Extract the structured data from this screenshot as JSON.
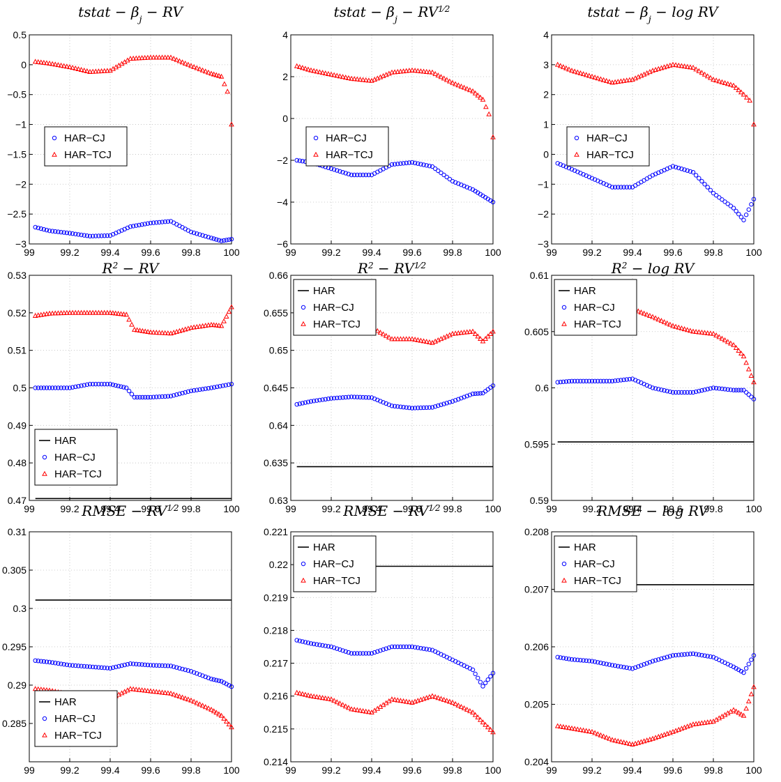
{
  "figure": {
    "legend_labels": {
      "HAR": "HAR",
      "HAR-CJ": "HAR−CJ",
      "HAR-TCJ": "HAR−TCJ"
    },
    "colors": {
      "HAR": "#000000",
      "HAR-CJ": "#0000ff",
      "HAR-TCJ": "#ff0000"
    }
  },
  "chart_data": [
    {
      "type": "scatter",
      "title": "tstat − β_j − RV",
      "xlim": [
        99,
        100
      ],
      "ylim": [
        -3,
        0.5
      ],
      "xticks": [
        99,
        99.2,
        99.4,
        99.6,
        99.8,
        100
      ],
      "xtick_labels": [
        "99",
        "99.2",
        "99.4",
        "99.6",
        "99.8",
        "100"
      ],
      "yticks": [
        -3,
        -2.5,
        -2,
        -1.5,
        -1,
        -0.5,
        0,
        0.5
      ],
      "ytick_labels": [
        "−3",
        "−2.5",
        "−2",
        "−1.5",
        "−1",
        "−0.5",
        "0",
        "0.5"
      ],
      "grid": true,
      "legend": "center-left",
      "series": [
        {
          "name": "HAR-CJ",
          "marker": "circle",
          "x": [
            99.03,
            99.1,
            99.2,
            99.3,
            99.4,
            99.5,
            99.6,
            99.7,
            99.8,
            99.9,
            99.95,
            100
          ],
          "y": [
            -2.72,
            -2.78,
            -2.82,
            -2.87,
            -2.86,
            -2.71,
            -2.65,
            -2.62,
            -2.8,
            -2.9,
            -2.95,
            -2.92
          ]
        },
        {
          "name": "HAR-TCJ",
          "marker": "triangle",
          "x": [
            99.03,
            99.1,
            99.2,
            99.3,
            99.4,
            99.5,
            99.6,
            99.7,
            99.8,
            99.9,
            99.95,
            99.98,
            100
          ],
          "y": [
            0.05,
            0.02,
            -0.04,
            -0.12,
            -0.1,
            0.1,
            0.12,
            0.12,
            -0.02,
            -0.15,
            -0.2,
            -0.45,
            -1.0
          ]
        }
      ]
    },
    {
      "type": "scatter",
      "title": "tstat − β_j − RV^(1/2)",
      "xlim": [
        99,
        100
      ],
      "ylim": [
        -6,
        4
      ],
      "xticks": [
        99,
        99.2,
        99.4,
        99.6,
        99.8,
        100
      ],
      "xtick_labels": [
        "99",
        "99.2",
        "99.4",
        "99.6",
        "99.8",
        "100"
      ],
      "yticks": [
        -6,
        -4,
        -2,
        0,
        2,
        4
      ],
      "ytick_labels": [
        "−6",
        "−4",
        "−2",
        "0",
        "2",
        "4"
      ],
      "grid": true,
      "legend": "center-left",
      "series": [
        {
          "name": "HAR-CJ",
          "marker": "circle",
          "x": [
            99.03,
            99.1,
            99.2,
            99.3,
            99.4,
            99.5,
            99.6,
            99.7,
            99.8,
            99.9,
            99.95,
            100
          ],
          "y": [
            -2.0,
            -2.1,
            -2.4,
            -2.7,
            -2.7,
            -2.2,
            -2.1,
            -2.3,
            -3.0,
            -3.4,
            -3.7,
            -4.0
          ]
        },
        {
          "name": "HAR-TCJ",
          "marker": "triangle",
          "x": [
            99.03,
            99.1,
            99.2,
            99.3,
            99.4,
            99.5,
            99.6,
            99.7,
            99.8,
            99.9,
            99.95,
            99.98,
            100
          ],
          "y": [
            2.5,
            2.3,
            2.1,
            1.9,
            1.8,
            2.2,
            2.3,
            2.2,
            1.7,
            1.3,
            0.9,
            0.2,
            -0.9
          ]
        }
      ]
    },
    {
      "type": "scatter",
      "title": "tstat − β_j − log RV",
      "xlim": [
        99,
        100
      ],
      "ylim": [
        -3,
        4
      ],
      "xticks": [
        99,
        99.2,
        99.4,
        99.6,
        99.8,
        100
      ],
      "xtick_labels": [
        "99",
        "99.2",
        "99.4",
        "99.6",
        "99.8",
        "100"
      ],
      "yticks": [
        -3,
        -2,
        -1,
        0,
        1,
        2,
        3,
        4
      ],
      "ytick_labels": [
        "−3",
        "−2",
        "−1",
        "0",
        "1",
        "2",
        "3",
        "4"
      ],
      "grid": true,
      "legend": "center-left",
      "series": [
        {
          "name": "HAR-CJ",
          "marker": "circle",
          "x": [
            99.03,
            99.1,
            99.2,
            99.3,
            99.4,
            99.5,
            99.6,
            99.7,
            99.8,
            99.9,
            99.95,
            100
          ],
          "y": [
            -0.3,
            -0.5,
            -0.8,
            -1.1,
            -1.1,
            -0.7,
            -0.4,
            -0.6,
            -1.3,
            -1.8,
            -2.2,
            -1.5
          ]
        },
        {
          "name": "HAR-TCJ",
          "marker": "triangle",
          "x": [
            99.03,
            99.1,
            99.2,
            99.3,
            99.4,
            99.5,
            99.6,
            99.7,
            99.8,
            99.9,
            99.95,
            99.98,
            100
          ],
          "y": [
            3.0,
            2.8,
            2.6,
            2.4,
            2.5,
            2.8,
            3.0,
            2.9,
            2.5,
            2.3,
            2.0,
            1.8,
            1.0
          ]
        }
      ]
    },
    {
      "type": "scatter",
      "title": "R^2 − RV",
      "xlim": [
        99,
        100
      ],
      "ylim": [
        0.47,
        0.53
      ],
      "xticks": [
        99,
        99.2,
        99.4,
        99.6,
        99.8,
        100
      ],
      "xtick_labels": [
        "99",
        "99.2",
        "99.4",
        "99.6",
        "99.8",
        "100"
      ],
      "yticks": [
        0.47,
        0.48,
        0.49,
        0.5,
        0.51,
        0.52,
        0.53
      ],
      "ytick_labels": [
        "0.47",
        "0.48",
        "0.49",
        "0.5",
        "0.51",
        "0.52",
        "0.53"
      ],
      "grid": true,
      "legend": "bottom-left",
      "series": [
        {
          "name": "HAR",
          "marker": "line",
          "x": [
            99.03,
            100
          ],
          "y": [
            0.4705,
            0.4705
          ]
        },
        {
          "name": "HAR-CJ",
          "marker": "circle",
          "x": [
            99.03,
            99.1,
            99.2,
            99.3,
            99.4,
            99.48,
            99.52,
            99.6,
            99.7,
            99.8,
            99.9,
            100
          ],
          "y": [
            0.5,
            0.5,
            0.5,
            0.501,
            0.501,
            0.5,
            0.4975,
            0.4975,
            0.4978,
            0.4992,
            0.5,
            0.501
          ]
        },
        {
          "name": "HAR-TCJ",
          "marker": "triangle",
          "x": [
            99.03,
            99.1,
            99.2,
            99.3,
            99.4,
            99.48,
            99.52,
            99.6,
            99.7,
            99.8,
            99.9,
            99.95,
            100
          ],
          "y": [
            0.5192,
            0.5198,
            0.52,
            0.52,
            0.52,
            0.5195,
            0.5155,
            0.5148,
            0.5145,
            0.516,
            0.5168,
            0.5165,
            0.5215
          ]
        }
      ]
    },
    {
      "type": "scatter",
      "title": "R^2 − RV^(1/2)",
      "xlim": [
        99,
        100
      ],
      "ylim": [
        0.63,
        0.66
      ],
      "xticks": [
        99,
        99.2,
        99.4,
        99.6,
        99.8,
        100
      ],
      "xtick_labels": [
        "99",
        "99.2",
        "99.4",
        "99.6",
        "99.8",
        "100"
      ],
      "yticks": [
        0.63,
        0.635,
        0.64,
        0.645,
        0.65,
        0.655,
        0.66
      ],
      "ytick_labels": [
        "0.63",
        "0.635",
        "0.64",
        "0.645",
        "0.65",
        "0.655",
        "0.66"
      ],
      "grid": true,
      "legend": "top-left",
      "series": [
        {
          "name": "HAR",
          "marker": "line",
          "x": [
            99.03,
            100
          ],
          "y": [
            0.6345,
            0.6345
          ]
        },
        {
          "name": "HAR-CJ",
          "marker": "circle",
          "x": [
            99.03,
            99.1,
            99.2,
            99.3,
            99.4,
            99.5,
            99.6,
            99.7,
            99.8,
            99.9,
            99.95,
            100
          ],
          "y": [
            0.6428,
            0.6432,
            0.6436,
            0.6438,
            0.6437,
            0.6426,
            0.6423,
            0.6424,
            0.6432,
            0.6442,
            0.6443,
            0.6453
          ]
        },
        {
          "name": "HAR-TCJ",
          "marker": "triangle",
          "x": [
            99.03,
            99.1,
            99.2,
            99.3,
            99.4,
            99.5,
            99.6,
            99.7,
            99.8,
            99.9,
            99.95,
            100
          ],
          "y": [
            0.6525,
            0.6528,
            0.6532,
            0.6532,
            0.653,
            0.6515,
            0.6515,
            0.651,
            0.6522,
            0.6525,
            0.6512,
            0.6525
          ]
        }
      ]
    },
    {
      "type": "scatter",
      "title": "R^2 − log RV",
      "xlim": [
        99,
        100
      ],
      "ylim": [
        0.59,
        0.61
      ],
      "xticks": [
        99,
        99.2,
        99.4,
        99.6,
        99.8,
        100
      ],
      "xtick_labels": [
        "99",
        "99.2",
        "99.4",
        "99.6",
        "99.8",
        "100"
      ],
      "yticks": [
        0.59,
        0.595,
        0.6,
        0.605,
        0.61
      ],
      "ytick_labels": [
        "0.59",
        "0.595",
        "0.6",
        "0.605",
        "0.61"
      ],
      "grid": true,
      "legend": "top-left",
      "series": [
        {
          "name": "HAR",
          "marker": "line",
          "x": [
            99.03,
            100
          ],
          "y": [
            0.5952,
            0.5952
          ]
        },
        {
          "name": "HAR-CJ",
          "marker": "circle",
          "x": [
            99.03,
            99.1,
            99.2,
            99.3,
            99.4,
            99.5,
            99.6,
            99.7,
            99.8,
            99.9,
            99.95,
            100
          ],
          "y": [
            0.6005,
            0.6006,
            0.6006,
            0.6006,
            0.6008,
            0.6,
            0.5996,
            0.5996,
            0.6,
            0.5998,
            0.5998,
            0.599
          ]
        },
        {
          "name": "HAR-TCJ",
          "marker": "triangle",
          "x": [
            99.03,
            99.1,
            99.2,
            99.3,
            99.4,
            99.5,
            99.6,
            99.7,
            99.8,
            99.9,
            99.95,
            100
          ],
          "y": [
            0.607,
            0.607,
            0.6072,
            0.6072,
            0.607,
            0.6063,
            0.6055,
            0.605,
            0.6048,
            0.6038,
            0.6028,
            0.6005
          ]
        }
      ]
    },
    {
      "type": "scatter",
      "title": "RMSE − RV^(1/2)",
      "xlim": [
        99,
        100
      ],
      "ylim": [
        0.28,
        0.31
      ],
      "xticks": [
        99,
        99.2,
        99.4,
        99.6,
        99.8,
        100
      ],
      "xtick_labels": [
        "99",
        "99.2",
        "99.4",
        "99.6",
        "99.8",
        "100"
      ],
      "yticks": [
        0.285,
        0.29,
        0.295,
        0.3,
        0.305,
        0.31
      ],
      "ytick_labels": [
        "0.285",
        "0.29",
        "0.295",
        "0.3",
        "0.305",
        "0.31"
      ],
      "grid": true,
      "legend": "bottom-left",
      "series": [
        {
          "name": "HAR",
          "marker": "line",
          "x": [
            99.03,
            100
          ],
          "y": [
            0.3011,
            0.3011
          ]
        },
        {
          "name": "HAR-CJ",
          "marker": "circle",
          "x": [
            99.03,
            99.1,
            99.2,
            99.3,
            99.4,
            99.5,
            99.6,
            99.7,
            99.8,
            99.9,
            99.95,
            100
          ],
          "y": [
            0.2932,
            0.293,
            0.2926,
            0.2924,
            0.2922,
            0.2928,
            0.2926,
            0.2925,
            0.2918,
            0.2908,
            0.2905,
            0.2898
          ]
        },
        {
          "name": "HAR-TCJ",
          "marker": "triangle",
          "x": [
            99.03,
            99.1,
            99.2,
            99.3,
            99.4,
            99.5,
            99.6,
            99.7,
            99.8,
            99.9,
            99.95,
            100
          ],
          "y": [
            0.2895,
            0.2893,
            0.2888,
            0.2884,
            0.2882,
            0.2895,
            0.2892,
            0.2889,
            0.288,
            0.2868,
            0.286,
            0.2845
          ]
        }
      ]
    },
    {
      "type": "scatter",
      "title": "RMSE − RV^(1/2)",
      "xlim": [
        99,
        100
      ],
      "ylim": [
        0.214,
        0.221
      ],
      "xticks": [
        99,
        99.2,
        99.4,
        99.6,
        99.8,
        100
      ],
      "xtick_labels": [
        "99",
        "99.2",
        "99.4",
        "99.6",
        "99.8",
        "100"
      ],
      "yticks": [
        0.214,
        0.215,
        0.216,
        0.217,
        0.218,
        0.219,
        0.22,
        0.221
      ],
      "ytick_labels": [
        "0.214",
        "0.215",
        "0.216",
        "0.217",
        "0.218",
        "0.219",
        "0.22",
        "0.221"
      ],
      "grid": true,
      "legend": "top-left",
      "series": [
        {
          "name": "HAR",
          "marker": "line",
          "x": [
            99.03,
            100
          ],
          "y": [
            0.21995,
            0.21995
          ]
        },
        {
          "name": "HAR-CJ",
          "marker": "circle",
          "x": [
            99.03,
            99.1,
            99.2,
            99.3,
            99.4,
            99.5,
            99.6,
            99.7,
            99.8,
            99.9,
            99.95,
            100
          ],
          "y": [
            0.2177,
            0.2176,
            0.2175,
            0.2173,
            0.2173,
            0.2175,
            0.2175,
            0.2174,
            0.2171,
            0.2168,
            0.2163,
            0.2167
          ]
        },
        {
          "name": "HAR-TCJ",
          "marker": "triangle",
          "x": [
            99.03,
            99.1,
            99.2,
            99.3,
            99.4,
            99.5,
            99.6,
            99.7,
            99.8,
            99.9,
            99.95,
            100
          ],
          "y": [
            0.2161,
            0.216,
            0.2159,
            0.2156,
            0.2155,
            0.2159,
            0.2158,
            0.216,
            0.2158,
            0.2155,
            0.2152,
            0.2149
          ]
        }
      ]
    },
    {
      "type": "scatter",
      "title": "RMSE − log RV",
      "xlim": [
        99,
        100
      ],
      "ylim": [
        0.204,
        0.208
      ],
      "xticks": [
        99,
        99.2,
        99.4,
        99.6,
        99.8,
        100
      ],
      "xtick_labels": [
        "99",
        "99.2",
        "99.4",
        "99.6",
        "99.8",
        "100"
      ],
      "yticks": [
        0.204,
        0.205,
        0.206,
        0.207,
        0.208
      ],
      "ytick_labels": [
        "0.204",
        "0.205",
        "0.206",
        "0.207",
        "0.208"
      ],
      "grid": true,
      "legend": "top-left",
      "series": [
        {
          "name": "HAR",
          "marker": "line",
          "x": [
            99.03,
            100
          ],
          "y": [
            0.20708,
            0.20708
          ]
        },
        {
          "name": "HAR-CJ",
          "marker": "circle",
          "x": [
            99.03,
            99.1,
            99.2,
            99.3,
            99.4,
            99.5,
            99.6,
            99.7,
            99.8,
            99.9,
            99.95,
            100
          ],
          "y": [
            0.20582,
            0.20578,
            0.20575,
            0.20568,
            0.20562,
            0.20575,
            0.20585,
            0.20588,
            0.20582,
            0.20565,
            0.20555,
            0.20585
          ]
        },
        {
          "name": "HAR-TCJ",
          "marker": "triangle",
          "x": [
            99.03,
            99.1,
            99.2,
            99.3,
            99.4,
            99.5,
            99.6,
            99.7,
            99.8,
            99.9,
            99.95,
            100
          ],
          "y": [
            0.20462,
            0.20458,
            0.20452,
            0.20438,
            0.2043,
            0.2044,
            0.20452,
            0.20465,
            0.2047,
            0.2049,
            0.2048,
            0.2053
          ]
        }
      ]
    }
  ]
}
